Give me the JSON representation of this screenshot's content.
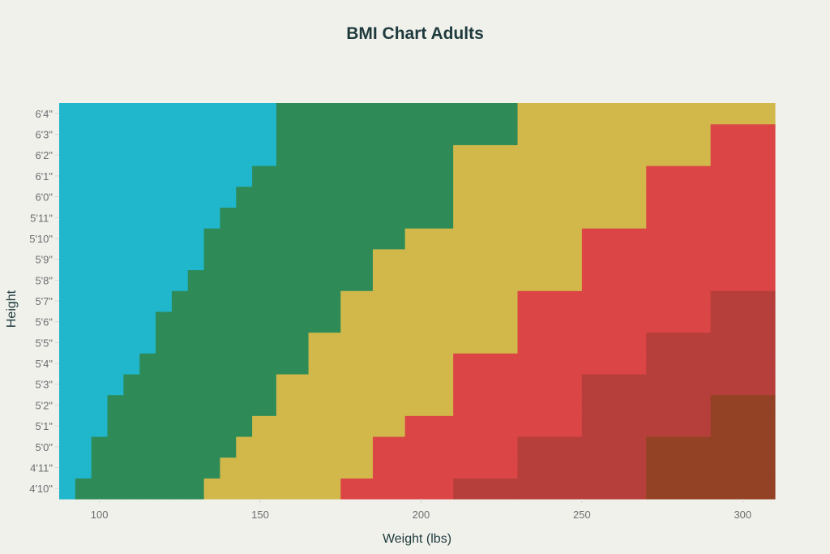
{
  "chart_data": {
    "type": "heatmap",
    "title": "BMI Chart Adults",
    "xlabel": "Weight (lbs)",
    "ylabel": "Height",
    "x": [
      90,
      95,
      100,
      105,
      110,
      115,
      120,
      125,
      130,
      135,
      140,
      145,
      150,
      160,
      170,
      180,
      190,
      200,
      220,
      240,
      260,
      280,
      300
    ],
    "xlim": [
      87.5,
      310
    ],
    "xticks": [
      100,
      150,
      200,
      250,
      300
    ],
    "y": [
      "4'10\"",
      "4'11\"",
      "5'0\"",
      "5'1\"",
      "5'2\"",
      "5'3\"",
      "5'4\"",
      "5'5\"",
      "5'6\"",
      "5'7\"",
      "5'8\"",
      "5'9\"",
      "5'10\"",
      "5'11\"",
      "6'0\"",
      "6'1\"",
      "6'2\"",
      "6'3\"",
      "6'4\""
    ],
    "colors": [
      "#20b6cc",
      "#2e8b57",
      "#d2b84b",
      "#db4545",
      "#b63f3c",
      "#944225"
    ],
    "z": [
      [
        0,
        1,
        1,
        1,
        1,
        1,
        1,
        1,
        1,
        2,
        2,
        2,
        2,
        2,
        2,
        3,
        3,
        3,
        4,
        4,
        4,
        5,
        5
      ],
      [
        0,
        0,
        1,
        1,
        1,
        1,
        1,
        1,
        1,
        1,
        2,
        2,
        2,
        2,
        2,
        2,
        3,
        3,
        3,
        4,
        4,
        5,
        5
      ],
      [
        0,
        0,
        1,
        1,
        1,
        1,
        1,
        1,
        1,
        1,
        1,
        2,
        2,
        2,
        2,
        2,
        3,
        3,
        3,
        4,
        4,
        5,
        5
      ],
      [
        0,
        0,
        0,
        1,
        1,
        1,
        1,
        1,
        1,
        1,
        1,
        1,
        2,
        2,
        2,
        2,
        2,
        3,
        3,
        3,
        4,
        4,
        5
      ],
      [
        0,
        0,
        0,
        1,
        1,
        1,
        1,
        1,
        1,
        1,
        1,
        1,
        1,
        2,
        2,
        2,
        2,
        2,
        3,
        3,
        4,
        4,
        5
      ],
      [
        0,
        0,
        0,
        0,
        1,
        1,
        1,
        1,
        1,
        1,
        1,
        1,
        1,
        2,
        2,
        2,
        2,
        2,
        3,
        3,
        4,
        4,
        4
      ],
      [
        0,
        0,
        0,
        0,
        0,
        1,
        1,
        1,
        1,
        1,
        1,
        1,
        1,
        1,
        2,
        2,
        2,
        2,
        3,
        3,
        3,
        4,
        4
      ],
      [
        0,
        0,
        0,
        0,
        0,
        0,
        1,
        1,
        1,
        1,
        1,
        1,
        1,
        1,
        2,
        2,
        2,
        2,
        2,
        3,
        3,
        4,
        4
      ],
      [
        0,
        0,
        0,
        0,
        0,
        0,
        1,
        1,
        1,
        1,
        1,
        1,
        1,
        1,
        1,
        2,
        2,
        2,
        2,
        3,
        3,
        3,
        4
      ],
      [
        0,
        0,
        0,
        0,
        0,
        0,
        0,
        1,
        1,
        1,
        1,
        1,
        1,
        1,
        1,
        2,
        2,
        2,
        2,
        3,
        3,
        3,
        4
      ],
      [
        0,
        0,
        0,
        0,
        0,
        0,
        0,
        0,
        1,
        1,
        1,
        1,
        1,
        1,
        1,
        1,
        2,
        2,
        2,
        2,
        3,
        3,
        3
      ],
      [
        0,
        0,
        0,
        0,
        0,
        0,
        0,
        0,
        0,
        1,
        1,
        1,
        1,
        1,
        1,
        1,
        2,
        2,
        2,
        2,
        3,
        3,
        3
      ],
      [
        0,
        0,
        0,
        0,
        0,
        0,
        0,
        0,
        0,
        1,
        1,
        1,
        1,
        1,
        1,
        1,
        1,
        2,
        2,
        2,
        3,
        3,
        3
      ],
      [
        0,
        0,
        0,
        0,
        0,
        0,
        0,
        0,
        0,
        0,
        1,
        1,
        1,
        1,
        1,
        1,
        1,
        1,
        2,
        2,
        2,
        3,
        3
      ],
      [
        0,
        0,
        0,
        0,
        0,
        0,
        0,
        0,
        0,
        0,
        0,
        1,
        1,
        1,
        1,
        1,
        1,
        1,
        2,
        2,
        2,
        3,
        3
      ],
      [
        0,
        0,
        0,
        0,
        0,
        0,
        0,
        0,
        0,
        0,
        0,
        0,
        1,
        1,
        1,
        1,
        1,
        1,
        2,
        2,
        2,
        3,
        3
      ],
      [
        0,
        0,
        0,
        0,
        0,
        0,
        0,
        0,
        0,
        0,
        0,
        0,
        0,
        1,
        1,
        1,
        1,
        1,
        2,
        2,
        2,
        2,
        3
      ],
      [
        0,
        0,
        0,
        0,
        0,
        0,
        0,
        0,
        0,
        0,
        0,
        0,
        0,
        1,
        1,
        1,
        1,
        1,
        1,
        2,
        2,
        2,
        3
      ],
      [
        0,
        0,
        0,
        0,
        0,
        0,
        0,
        0,
        0,
        0,
        0,
        0,
        0,
        1,
        1,
        1,
        1,
        1,
        1,
        2,
        2,
        2,
        2
      ]
    ]
  }
}
